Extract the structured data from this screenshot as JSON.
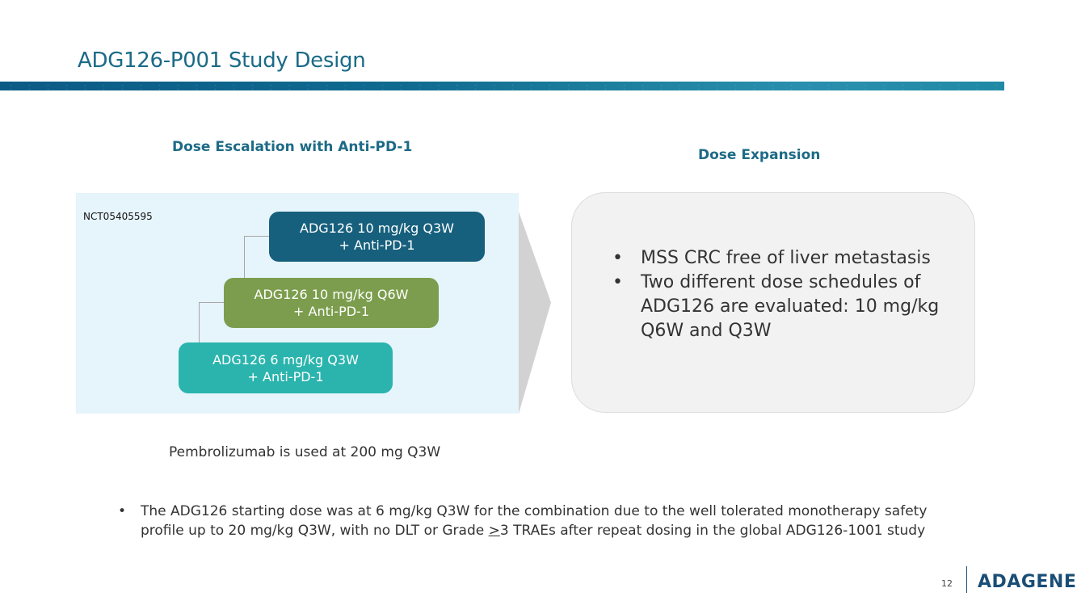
{
  "slide": {
    "title": "ADG126-P001 Study Design",
    "page_number": "12",
    "logo_text": "ADAGENE"
  },
  "left": {
    "heading": "Dose Escalation with Anti-PD-1",
    "nct_id": "NCT05405595",
    "boxes": [
      {
        "line1": "ADG126 10 mg/kg Q3W",
        "line2": "+ Anti-PD-1",
        "color": "#17607d"
      },
      {
        "line1": "ADG126 10 mg/kg Q6W",
        "line2": "+ Anti-PD-1",
        "color": "#7c9d4d"
      },
      {
        "line1": "ADG126 6 mg/kg Q3W",
        "line2": "+ Anti-PD-1",
        "color": "#2ab4ad"
      }
    ]
  },
  "right": {
    "heading": "Dose Expansion",
    "bullets": [
      "MSS CRC free of liver metastasis",
      "Two different dose schedules of ADG126 are evaluated: 10 mg/kg Q6W and Q3W"
    ]
  },
  "pembro_note": "Pembrolizumab is used at 200 mg Q3W",
  "footnote": {
    "before": "The ADG126 starting dose was at 6 mg/kg Q3W for the combination due to the well tolerated monotherapy safety profile up to 20 mg/kg Q3W, with no DLT or Grade ",
    "geq": ">",
    "after": "3 TRAEs after repeat dosing in the global ADG126-1001 study"
  },
  "bullet_glyph": "•"
}
